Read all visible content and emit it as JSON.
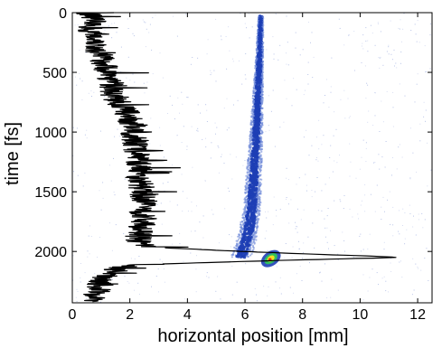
{
  "chart_data": {
    "type": "scatter",
    "title": "",
    "xlabel": "horizontal position [mm]",
    "ylabel": "time [fs]",
    "xlim": [
      0,
      12.5
    ],
    "ylim": [
      2430,
      0
    ],
    "y_inverted": true,
    "x_ticks": [
      "0",
      "2",
      "4",
      "6",
      "8",
      "10",
      "12"
    ],
    "y_ticks": [
      "0",
      "500",
      "1000",
      "1500",
      "2000"
    ],
    "x_tick_values": [
      0,
      2,
      4,
      6,
      8,
      10,
      12
    ],
    "y_tick_values": [
      0,
      500,
      1000,
      1500,
      2000
    ],
    "grid": false,
    "colors": {
      "trace": "#000000",
      "beam": "#1e3fb5",
      "beam_light": "#6f8bd8",
      "hot_yellow": "#f0e020",
      "hot_green": "#30c060",
      "hot_red": "#e03020"
    },
    "series": [
      {
        "kind": "line",
        "points": [
          [
            0.5,
            0
          ],
          [
            0.8,
            60
          ],
          [
            0.6,
            120
          ],
          [
            0.7,
            180
          ],
          [
            0.9,
            240
          ],
          [
            0.8,
            300
          ],
          [
            1.0,
            360
          ],
          [
            1.1,
            420
          ],
          [
            1.2,
            480
          ],
          [
            1.3,
            540
          ],
          [
            1.4,
            600
          ],
          [
            1.3,
            660
          ],
          [
            1.5,
            720
          ],
          [
            1.7,
            780
          ],
          [
            1.9,
            840
          ],
          [
            2.0,
            900
          ],
          [
            2.1,
            960
          ],
          [
            2.1,
            1020
          ],
          [
            2.2,
            1080
          ],
          [
            2.2,
            1140
          ],
          [
            2.3,
            1200
          ],
          [
            2.3,
            1260
          ],
          [
            2.4,
            1320
          ],
          [
            2.3,
            1380
          ],
          [
            2.4,
            1440
          ],
          [
            2.4,
            1500
          ],
          [
            2.5,
            1560
          ],
          [
            2.5,
            1620
          ],
          [
            2.4,
            1680
          ],
          [
            2.5,
            1740
          ],
          [
            2.4,
            1800
          ],
          [
            2.3,
            1860
          ],
          [
            2.3,
            1920
          ],
          [
            2.5,
            1960
          ],
          [
            5.0,
            1990
          ],
          [
            8.0,
            2020
          ],
          [
            10.5,
            2040
          ],
          [
            11.3,
            2050
          ],
          [
            8.0,
            2070
          ],
          [
            5.0,
            2090
          ],
          [
            2.5,
            2110
          ],
          [
            1.7,
            2130
          ],
          [
            1.5,
            2160
          ],
          [
            1.2,
            2200
          ],
          [
            1.0,
            2260
          ],
          [
            0.9,
            2320
          ],
          [
            0.8,
            2380
          ],
          [
            0.7,
            2420
          ]
        ]
      },
      {
        "kind": "density",
        "ridge": [
          [
            6.55,
            30
          ],
          [
            6.53,
            200
          ],
          [
            6.5,
            400
          ],
          [
            6.47,
            600
          ],
          [
            6.43,
            800
          ],
          [
            6.4,
            1000
          ],
          [
            6.35,
            1200
          ],
          [
            6.3,
            1400
          ],
          [
            6.25,
            1600
          ],
          [
            6.15,
            1800
          ],
          [
            6.0,
            1950
          ],
          [
            5.85,
            2050
          ]
        ],
        "hotspot": [
          6.9,
          2060
        ]
      }
    ]
  }
}
